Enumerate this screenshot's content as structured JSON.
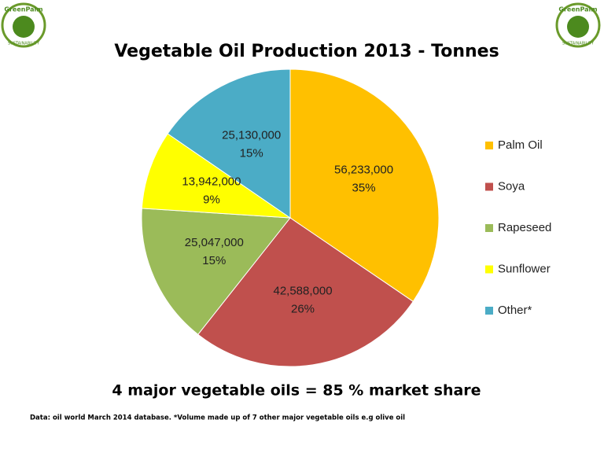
{
  "chart_data": {
    "type": "pie",
    "title": "Vegetable Oil Production 2013 - Tonnes",
    "categories": [
      "Palm Oil",
      "Soya",
      "Rapeseed",
      "Sunflower",
      "Other*"
    ],
    "values": [
      56233000,
      42588000,
      25047000,
      13942000,
      25130000
    ],
    "value_labels": [
      "56,233,000",
      "42,588,000",
      "25,047,000",
      "13,942,000",
      "25,130,000"
    ],
    "share_labels": [
      "35%",
      "26%",
      "15%",
      "9%",
      "15%"
    ],
    "colors": [
      "#FFC000",
      "#C0504D",
      "#9BBB59",
      "#FFFF00",
      "#4BACC6"
    ],
    "legend": "right",
    "subtitle": "4 major vegetable oils = 85 % market share",
    "note": "Data: oil world March 2014 database. *Volume made up of 7 other major vegetable oils e.g olive oil"
  },
  "logo": {
    "name": "GreenPalm",
    "tagline": "SUSTAINABILITY"
  }
}
